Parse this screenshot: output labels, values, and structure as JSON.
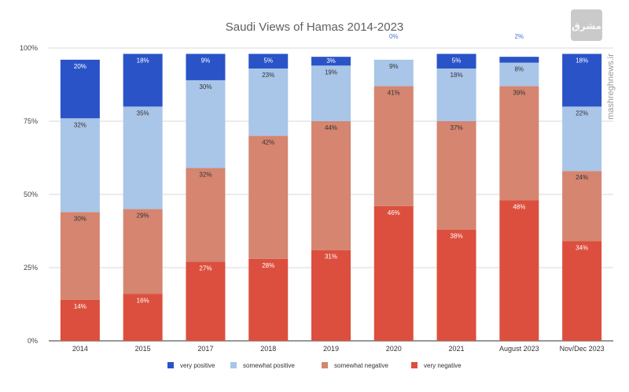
{
  "chart_data": {
    "type": "bar",
    "stacked": true,
    "title": "Saudi Views of Hamas 2014-2023",
    "xlabel": "",
    "ylabel": "",
    "ylim": [
      0,
      100
    ],
    "yticks": [
      "0%",
      "25%",
      "50%",
      "75%",
      "100%"
    ],
    "categories": [
      "2014",
      "2015",
      "2017",
      "2018",
      "2019",
      "2020",
      "2021",
      "August 2023",
      "Nov/Dec 2023"
    ],
    "series": [
      {
        "name": "very negative",
        "color": "#dc4f3e",
        "values": [
          14,
          16,
          27,
          28,
          31,
          46,
          38,
          48,
          34
        ]
      },
      {
        "name": "somewhat negative",
        "color": "#d58570",
        "values": [
          30,
          29,
          32,
          42,
          44,
          41,
          37,
          39,
          24
        ]
      },
      {
        "name": "somewhat positive",
        "color": "#a9c5e8",
        "values": [
          32,
          35,
          30,
          23,
          19,
          9,
          18,
          8,
          22
        ]
      },
      {
        "name": "very positive",
        "color": "#2a53c8",
        "values": [
          20,
          18,
          9,
          5,
          3,
          0,
          5,
          2,
          18
        ]
      }
    ],
    "legend_position": "bottom",
    "legend": [
      "very positive",
      "somewhat positive",
      "somewhat negative",
      "very negative"
    ]
  },
  "watermark": {
    "text": "mashreghnews.ir",
    "logo": "مشرق"
  }
}
